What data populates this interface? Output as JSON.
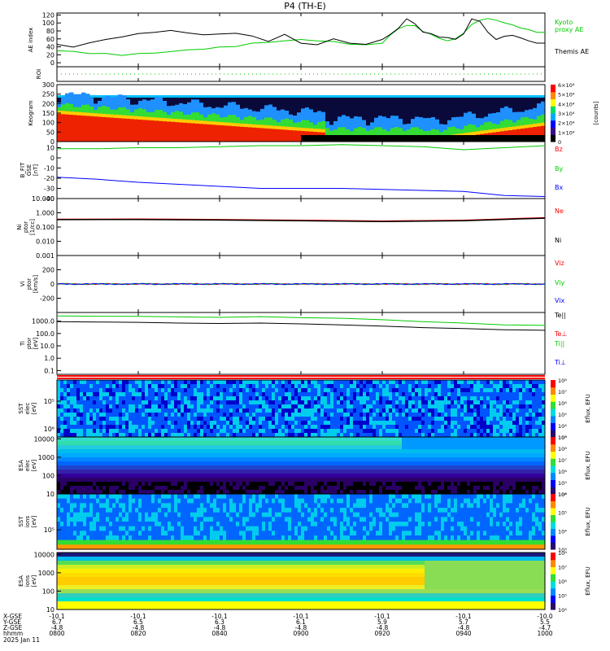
{
  "title": "P4 (TH-E)",
  "date_label": "2025 Jan 11",
  "footer": {
    "row_labels": [
      "X-GSE",
      "Y-GSE",
      "Z-GSE",
      "hhmm"
    ],
    "ticks": [
      {
        "x": "-10.1",
        "y": "6.7",
        "z": "-4.8",
        "time": "0800"
      },
      {
        "x": "-10.1",
        "y": "6.5",
        "z": "-4.8",
        "time": "0820"
      },
      {
        "x": "-10.1",
        "y": "6.3",
        "z": "-4.8",
        "time": "0840"
      },
      {
        "x": "-10.1",
        "y": "6.1",
        "z": "-4.8",
        "time": "0900"
      },
      {
        "x": "-10.1",
        "y": "5.9",
        "z": "-4.8",
        "time": "0920"
      },
      {
        "x": "-10.1",
        "y": "5.7",
        "z": "-4.8",
        "time": "0940"
      },
      {
        "x": "-10.0",
        "y": "5.5",
        "z": "-4.7",
        "time": "1000"
      }
    ]
  },
  "colorbar_units": {
    "keogram": "[counts]",
    "flux": "Eflux, EFU"
  },
  "colors": {
    "red": "#ff0000",
    "green": "#00cc00",
    "blue": "#0000ff",
    "black": "#000000",
    "ae_kyoto": "#00cc00",
    "ae_themis": "#000000"
  },
  "chart_data": [
    {
      "type": "line",
      "panel": "ae",
      "ylabel": "AE index",
      "yticks": [
        "0",
        "20",
        "40",
        "60",
        "80",
        "100",
        "120"
      ],
      "ylim": [
        -10,
        125
      ],
      "xlim": [
        0,
        120
      ],
      "series": [
        {
          "name": "Kyoto proxy AE",
          "label_lines": [
            "Kyoto",
            "proxy AE"
          ],
          "color": "#00cc00",
          "x": [
            0,
            4,
            8,
            12,
            16,
            20,
            24,
            28,
            32,
            36,
            40,
            44,
            48,
            52,
            56,
            60,
            64,
            68,
            72,
            76,
            80,
            82,
            84,
            86,
            88,
            90,
            92,
            94,
            96,
            98,
            100,
            102,
            104,
            106,
            108,
            110,
            112,
            114,
            116,
            118,
            120
          ],
          "y": [
            30,
            28,
            24,
            22,
            20,
            22,
            25,
            28,
            32,
            35,
            38,
            42,
            48,
            52,
            55,
            58,
            56,
            52,
            48,
            44,
            50,
            70,
            85,
            95,
            92,
            80,
            70,
            62,
            55,
            60,
            75,
            95,
            108,
            110,
            108,
            100,
            95,
            88,
            82,
            78,
            75
          ]
        },
        {
          "name": "Themis AE",
          "label_lines": [
            "Themis AE"
          ],
          "color": "#000000",
          "x": [
            0,
            4,
            8,
            12,
            16,
            20,
            24,
            28,
            32,
            36,
            40,
            44,
            48,
            52,
            56,
            60,
            64,
            68,
            72,
            76,
            80,
            82,
            84,
            86,
            88,
            90,
            92,
            94,
            96,
            98,
            100,
            102,
            104,
            106,
            108,
            110,
            112,
            114,
            116,
            118,
            120
          ],
          "y": [
            45,
            40,
            50,
            58,
            66,
            72,
            78,
            80,
            76,
            70,
            72,
            75,
            66,
            55,
            70,
            50,
            45,
            60,
            50,
            45,
            60,
            70,
            88,
            110,
            98,
            78,
            72,
            66,
            62,
            60,
            72,
            110,
            105,
            75,
            60,
            65,
            70,
            62,
            55,
            50,
            48
          ]
        }
      ]
    },
    {
      "type": "line",
      "panel": "roi",
      "ylabel": "ROI",
      "series": [
        {
          "name": "",
          "values": [
            0
          ],
          "color": "#00cc00"
        }
      ]
    },
    {
      "type": "heatmap",
      "panel": "keogram",
      "ylabel": "Keogram",
      "yticks": [
        "0",
        "50",
        "100",
        "150",
        "200",
        "250",
        "300"
      ],
      "ylim": [
        0,
        300
      ],
      "colorbar_ticks": [
        "0",
        "1×10⁴",
        "2×10⁴",
        "3×10⁴",
        "4×10⁴",
        "5×10⁴",
        "6×10⁴"
      ]
    },
    {
      "type": "line",
      "panel": "bfield",
      "ylabel": "B_FIT [nT]",
      "ylabel_lines": [
        "B_FIT",
        "GSE",
        "[nT]"
      ],
      "yticks": [
        "-40",
        "-30",
        "-20",
        "-10",
        "0",
        "10"
      ],
      "ylim": [
        -40,
        16
      ],
      "xlim": [
        0,
        120
      ],
      "series": [
        {
          "name": "Bz",
          "color": "#ff0000",
          "x": [
            0,
            120
          ],
          "y": [
            null,
            null
          ]
        },
        {
          "name": "By",
          "color": "#00cc00",
          "x": [
            0,
            10,
            20,
            30,
            40,
            50,
            60,
            70,
            80,
            90,
            100,
            110,
            120
          ],
          "y": [
            9,
            9,
            10,
            10,
            11,
            12,
            12,
            13,
            12,
            11,
            8,
            10,
            12
          ]
        },
        {
          "name": "Bx",
          "color": "#0000ff",
          "x": [
            0,
            10,
            20,
            30,
            40,
            50,
            60,
            70,
            80,
            90,
            100,
            110,
            120
          ],
          "y": [
            -19,
            -21,
            -24,
            -26,
            -28,
            -30,
            -30,
            -30,
            -31,
            -32,
            -33,
            -37,
            -38
          ]
        }
      ]
    },
    {
      "type": "line",
      "panel": "density",
      "ylabel": "Ni [1/cc]",
      "ylabel_lines": [
        "Ni",
        "ptor",
        "[1/cc]"
      ],
      "yticks": [
        "0.001",
        "0.010",
        "0.100",
        "1.000",
        "10.000"
      ],
      "ylim_log": [
        0.001,
        10
      ],
      "xlim": [
        0,
        120
      ],
      "series": [
        {
          "name": "Ne",
          "color": "#ff0000",
          "x": [
            0,
            20,
            40,
            60,
            80,
            100,
            120
          ],
          "y": [
            0.35,
            0.36,
            0.33,
            0.3,
            0.26,
            0.3,
            0.45
          ]
        },
        {
          "name": "Ni",
          "color": "#000000",
          "x": [
            0,
            20,
            40,
            60,
            80,
            100,
            120
          ],
          "y": [
            0.33,
            0.34,
            0.31,
            0.28,
            0.24,
            0.28,
            0.42
          ]
        }
      ]
    },
    {
      "type": "line",
      "panel": "velocity",
      "ylabel": "Vi [km/s]",
      "ylabel_lines": [
        "Vi",
        "ptor",
        "[km/s]"
      ],
      "yticks": [
        "-200",
        "0",
        "200"
      ],
      "ylim": [
        -400,
        400
      ],
      "xlim": [
        0,
        120
      ],
      "series": [
        {
          "name": "Viz",
          "color": "#ff0000",
          "x": [
            0,
            120
          ],
          "y": [
            0,
            0
          ]
        },
        {
          "name": "Viy",
          "color": "#00cc00",
          "x": [
            0,
            120
          ],
          "y": [
            0,
            0
          ]
        },
        {
          "name": "Vix",
          "color": "#0000ff",
          "x": [
            0,
            120
          ],
          "y": [
            0,
            0
          ]
        }
      ]
    },
    {
      "type": "line",
      "panel": "temperature",
      "ylabel": "Ti [eV]",
      "ylabel_lines": [
        "Ti",
        "ptor",
        "[eV]"
      ],
      "yticks": [
        "0.1",
        "1.0",
        "10.0",
        "100.0",
        "1000.0"
      ],
      "ylim_log": [
        0.05,
        5000
      ],
      "xlim": [
        0,
        120
      ],
      "series": [
        {
          "name": "Te||",
          "color": "#000000",
          "x": [
            0,
            120
          ],
          "y": [
            null,
            null
          ]
        },
        {
          "name": "Te⊥",
          "color": "#ff0000",
          "x": [
            0,
            120
          ],
          "y": [
            null,
            null
          ]
        },
        {
          "name": "Ti||",
          "color": "#00cc00",
          "x": [
            0,
            10,
            20,
            30,
            40,
            50,
            60,
            70,
            80,
            90,
            100,
            110,
            120
          ],
          "y": [
            2600,
            2500,
            2400,
            2200,
            2000,
            2300,
            1900,
            1700,
            1300,
            900,
            700,
            500,
            450
          ]
        },
        {
          "name": "Ti⊥",
          "color": "#0000ff",
          "x": [
            0,
            120
          ],
          "y": [
            null,
            null
          ]
        },
        {
          "name": "Ti",
          "color": "#000000",
          "x": [
            0,
            10,
            20,
            30,
            40,
            50,
            60,
            70,
            80,
            90,
            100,
            110,
            120
          ],
          "y": [
            900,
            850,
            800,
            700,
            650,
            700,
            600,
            500,
            400,
            300,
            250,
            200,
            180
          ]
        }
      ]
    },
    {
      "type": "heatmap",
      "panel": "sst_e",
      "ylabel": "SST [eV]",
      "ylabel_lines": [
        "SST",
        "elec",
        "[eV]"
      ],
      "yticks": [
        "10⁵",
        "10⁶"
      ],
      "colorbar_ticks": [
        "10³",
        "10⁴",
        "10⁵",
        "10⁶",
        "10⁷",
        "10⁸"
      ]
    },
    {
      "type": "heatmap",
      "panel": "esa_e",
      "ylabel": "ESA [eV]",
      "ylabel_lines": [
        "ESA",
        "elec",
        "[eV]"
      ],
      "yticks": [
        "10",
        "100",
        "1000",
        "10000"
      ],
      "colorbar_ticks": [
        "10⁴",
        "10⁵",
        "10⁶",
        "10⁷",
        "10⁸",
        "10⁹"
      ]
    },
    {
      "type": "heatmap",
      "panel": "sst_i",
      "ylabel": "SST [eV]",
      "ylabel_lines": [
        "SST",
        "ions",
        "[eV]"
      ],
      "yticks": [
        "10⁵"
      ],
      "colorbar_ticks": [
        "10³",
        "10⁴",
        "10⁵",
        "10⁶"
      ]
    },
    {
      "type": "heatmap",
      "panel": "esa_i",
      "ylabel": "ESA [eV]",
      "ylabel_lines": [
        "ESA",
        "ions",
        "[eV]"
      ],
      "yticks": [
        "10",
        "100",
        "1000",
        "10000"
      ],
      "colorbar_ticks": [
        "10⁴",
        "10⁵",
        "10⁶",
        "10⁷",
        "10⁸"
      ]
    }
  ]
}
